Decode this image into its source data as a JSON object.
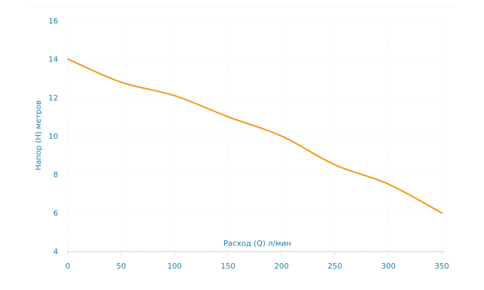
{
  "colors": {
    "series": "#f39a1e",
    "axis_text": "#1b7fb0",
    "grid": "#e6ebef",
    "axis_line": "#cfd8de"
  },
  "chart_data": {
    "type": "line",
    "title": "",
    "xlabel": "Расход (Q) л/мин",
    "ylabel": "Напор (H) метров",
    "xlim": [
      0,
      350
    ],
    "ylim": [
      4,
      16
    ],
    "xticks": [
      0,
      50,
      100,
      150,
      200,
      250,
      300,
      350
    ],
    "yticks": [
      4,
      6,
      8,
      10,
      12,
      14,
      16
    ],
    "grid": true,
    "legend": "none",
    "series": [
      {
        "x": [
          0,
          50,
          100,
          150,
          200,
          250,
          300,
          350
        ],
        "y": [
          14,
          12.8,
          12.1,
          11,
          10,
          8.5,
          7.5,
          6
        ]
      }
    ]
  }
}
